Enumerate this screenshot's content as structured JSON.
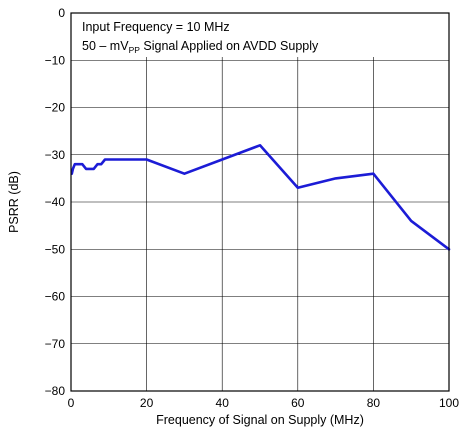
{
  "chart_data": {
    "type": "line",
    "xlabel": "Frequency of Signal on Supply (MHz)",
    "ylabel": "PSRR (dB)",
    "xlim": [
      0,
      100
    ],
    "ylim": [
      -80,
      0
    ],
    "x_ticks": [
      0,
      20,
      40,
      60,
      80,
      100
    ],
    "y_ticks": [
      0,
      -10,
      -20,
      -30,
      -40,
      -50,
      -60,
      -70,
      -80
    ],
    "x_tick_labels": [
      "0",
      "20",
      "40",
      "60",
      "80",
      "100"
    ],
    "y_tick_labels": [
      "0",
      "−10",
      "−20",
      "−30",
      "−40",
      "−50",
      "−60",
      "−70",
      "−80"
    ],
    "grid": true,
    "annotation": {
      "line1": "Input Frequency = 10 MHz",
      "line2_prefix": "50 – mV",
      "line2_sub": "PP",
      "line2_suffix": " Signal Applied on AVDD Supply"
    },
    "series": [
      {
        "color": "#1c1cd6",
        "x": [
          0.2,
          0.5,
          1,
          2,
          3,
          4,
          5,
          6,
          7,
          8,
          9,
          10,
          20,
          30,
          40,
          50,
          60,
          70,
          80,
          90,
          100
        ],
        "y": [
          -34,
          -33,
          -32,
          -32,
          -32,
          -33,
          -33,
          -33,
          -32,
          -32,
          -31,
          -31,
          -31,
          -34,
          -31,
          -28,
          -37,
          -35,
          -34,
          -44,
          -50
        ]
      }
    ]
  }
}
